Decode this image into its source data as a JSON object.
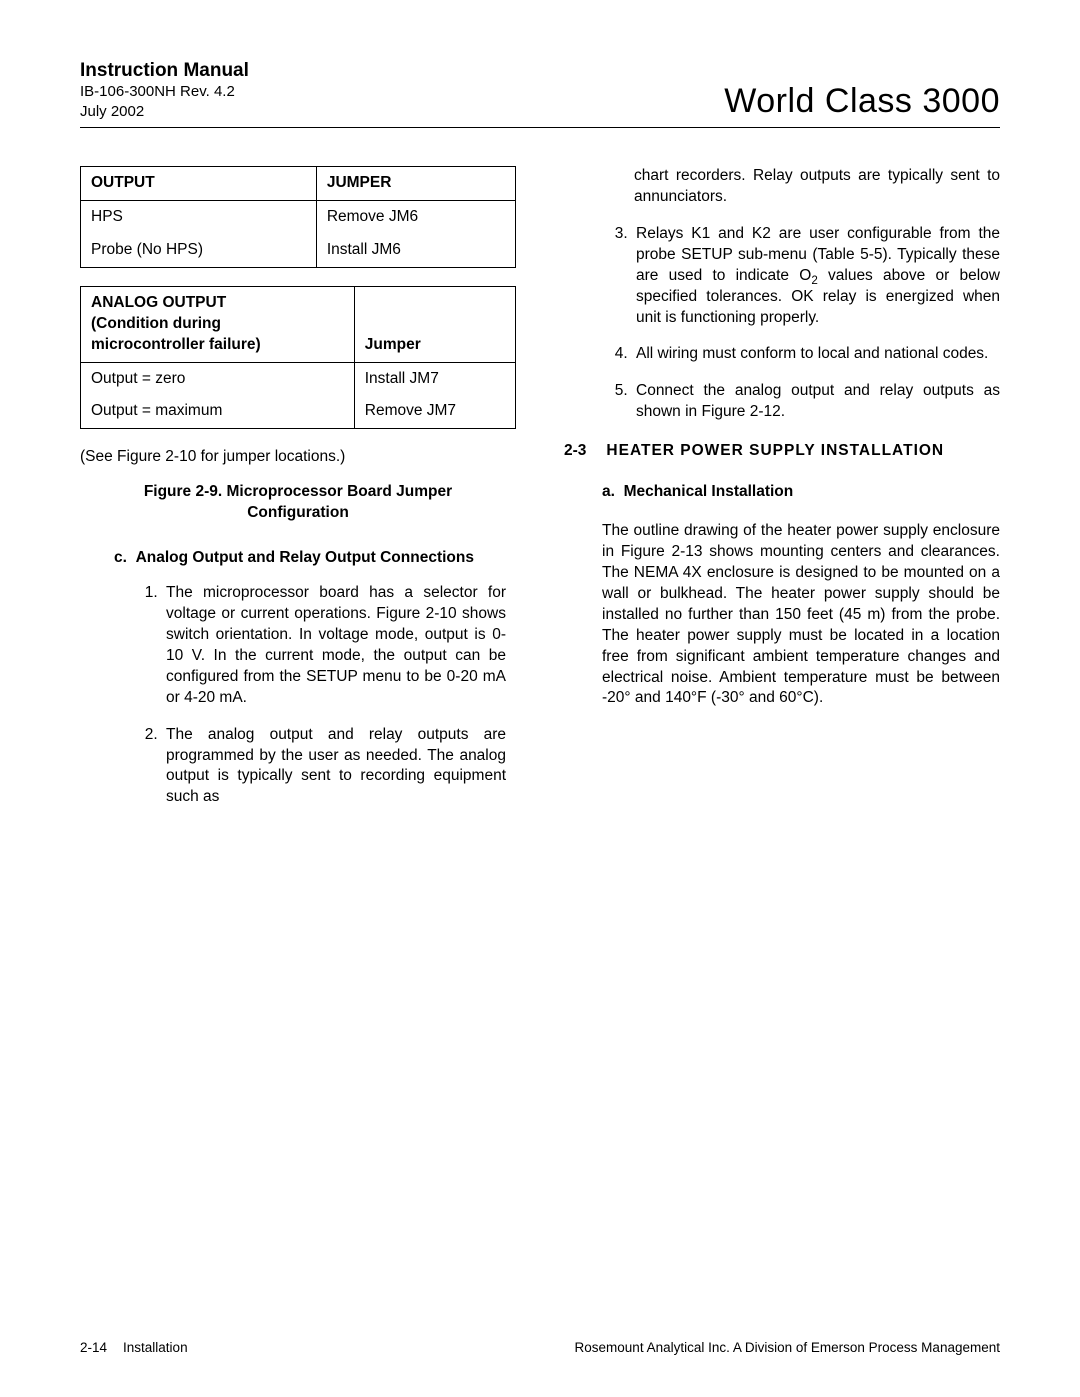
{
  "header": {
    "manual_title": "Instruction Manual",
    "doc_id": "IB-106-300NH Rev. 4.2",
    "date": "July 2002",
    "product": "World Class 3000"
  },
  "table1": {
    "headers": [
      "OUTPUT",
      "JUMPER"
    ],
    "rows": [
      [
        "HPS",
        "Remove JM6"
      ],
      [
        "Probe (No HPS)",
        "Install JM6"
      ]
    ]
  },
  "table2": {
    "headers_html": [
      "ANALOG OUTPUT<br>(Condition during<br>microcontroller failure)",
      "Jumper"
    ],
    "rows": [
      [
        "Output = zero",
        "Install JM7"
      ],
      [
        "Output = maximum",
        "Remove JM7"
      ]
    ]
  },
  "figref": "(See Figure 2-10 for jumper locations.)",
  "figcaption": "Figure 2-9.  Microprocessor Board Jumper Configuration",
  "sub_c_label": "c.",
  "sub_c_title": "Analog Output and Relay Output Connections",
  "left_list": [
    "The microprocessor board has a selector for voltage or current operations. Figure 2-10 shows switch orientation. In voltage mode, output is 0-10 V. In the current mode, the output can be configured from the SETUP menu to be 0-20 mA or 4-20 mA.",
    "The analog output and relay outputs are programmed by the user as needed. The analog output is typically sent to recording equipment such as"
  ],
  "right_top": "chart recorders. Relay outputs are typically sent to annunciators.",
  "right_list": [
    "Relays K1 and K2 are user configurable from the probe SETUP sub-menu (Table 5-5). Typically these are used to indicate O<sub>2</sub> values above or below specified tolerances. OK relay is energized when unit is functioning properly.",
    "All wiring must conform to local and national codes.",
    "Connect the analog output and relay outputs as shown in Figure 2-12."
  ],
  "section": {
    "num": "2-3",
    "title": "HEATER POWER SUPPLY INSTALLATION"
  },
  "sub_a_label": "a.",
  "sub_a_title": "Mechanical Installation",
  "para_a": "The outline drawing of the heater power supply enclosure in Figure 2-13 shows mounting centers and clearances. The NEMA 4X enclosure is designed to be mounted on a wall or bulkhead. The heater power supply should be installed no further than 150 feet (45 m) from the probe. The heater power supply must be located in a location free from significant ambient temperature changes and electrical noise. Ambient temperature must be between -20° and 140°F (-30° and 60°C).",
  "footer": {
    "pagenum": "2-14",
    "section": "Installation",
    "company": "Rosemount Analytical Inc.    A Division of Emerson Process Management"
  }
}
